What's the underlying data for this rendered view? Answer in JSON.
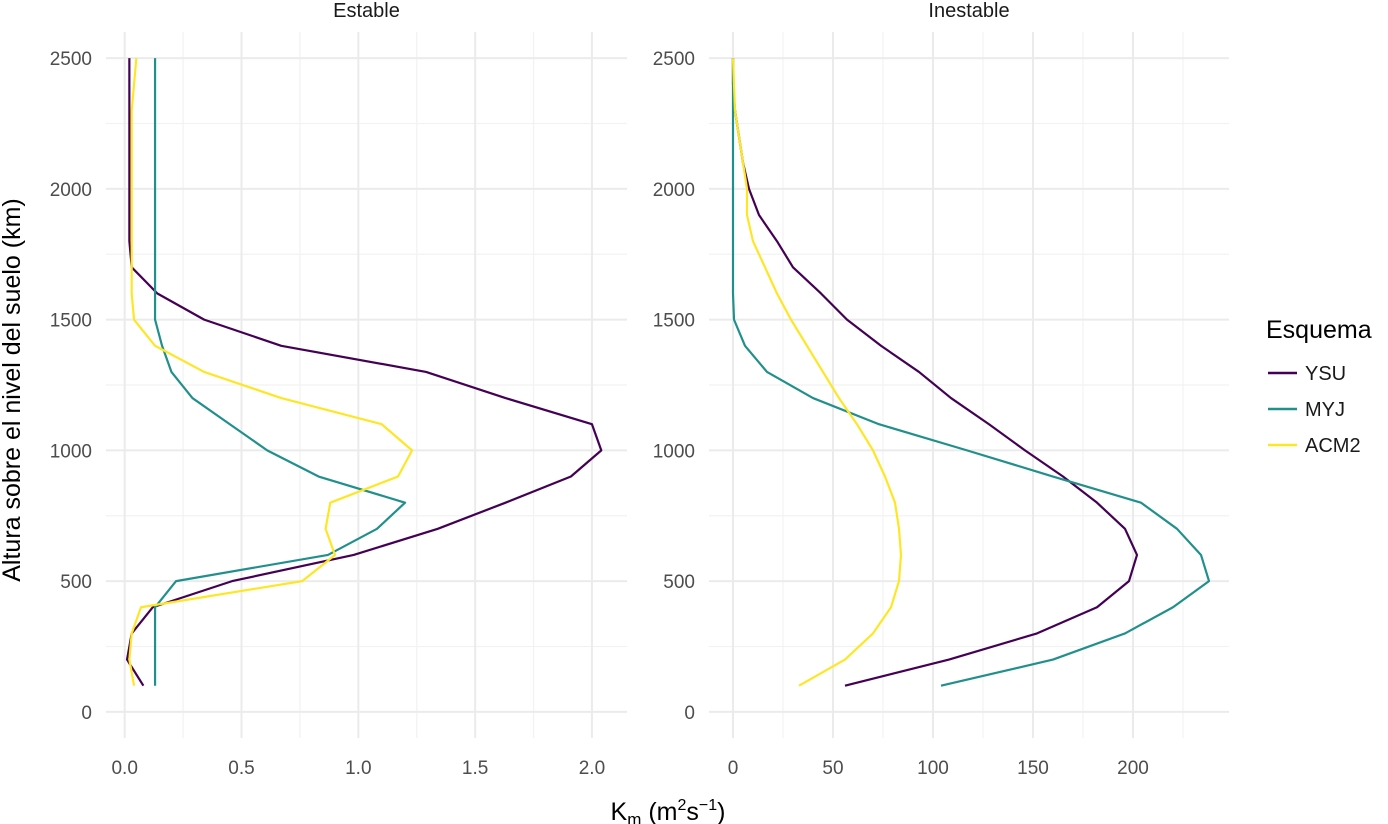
{
  "chart_data": {
    "type": "line",
    "xlabel": {
      "main": "K",
      "sub": "m",
      "unit_open": " (m",
      "sup1": "2",
      "unit_mid": "s",
      "sup2": "−1",
      "unit_close": ")"
    },
    "ylabel": "Altura sobre el nivel del suelo (km)",
    "ylim": [
      -100,
      2600
    ],
    "yticks": [
      0,
      500,
      1000,
      1500,
      2000,
      2500
    ],
    "grid": true,
    "legend": {
      "title": "Esquema",
      "position": "right",
      "entries": [
        {
          "name": "YSU",
          "color": "#440154"
        },
        {
          "name": "MYJ",
          "color": "#21908C"
        },
        {
          "name": "ACM2",
          "color": "#FDE725"
        }
      ]
    },
    "panels": [
      {
        "title": "Estable",
        "xlim": [
          -0.08,
          2.15
        ],
        "xticks": [
          0.0,
          0.5,
          1.0,
          1.5,
          2.0
        ],
        "xtick_labels": [
          "0.0",
          "0.5",
          "1.0",
          "1.5",
          "2.0"
        ],
        "series": [
          {
            "name": "YSU",
            "color": "#440154",
            "points": [
              [
                0.08,
                100
              ],
              [
                0.01,
                200
              ],
              [
                0.03,
                300
              ],
              [
                0.12,
                400
              ],
              [
                0.46,
                500
              ],
              [
                0.98,
                600
              ],
              [
                1.34,
                700
              ],
              [
                1.63,
                800
              ],
              [
                1.91,
                900
              ],
              [
                2.04,
                1000
              ],
              [
                2.0,
                1100
              ],
              [
                1.63,
                1200
              ],
              [
                1.29,
                1300
              ],
              [
                0.67,
                1400
              ],
              [
                0.34,
                1500
              ],
              [
                0.14,
                1600
              ],
              [
                0.03,
                1700
              ],
              [
                0.02,
                1800
              ],
              [
                0.02,
                1900
              ],
              [
                0.02,
                2000
              ],
              [
                0.02,
                2100
              ],
              [
                0.02,
                2200
              ],
              [
                0.02,
                2300
              ],
              [
                0.02,
                2400
              ],
              [
                0.02,
                2500
              ]
            ]
          },
          {
            "name": "MYJ",
            "color": "#21908C",
            "points": [
              [
                0.13,
                100
              ],
              [
                0.13,
                200
              ],
              [
                0.13,
                300
              ],
              [
                0.13,
                400
              ],
              [
                0.22,
                500
              ],
              [
                0.87,
                600
              ],
              [
                1.08,
                700
              ],
              [
                1.2,
                800
              ],
              [
                0.83,
                900
              ],
              [
                0.61,
                1000
              ],
              [
                0.45,
                1100
              ],
              [
                0.29,
                1200
              ],
              [
                0.2,
                1300
              ],
              [
                0.16,
                1400
              ],
              [
                0.13,
                1500
              ],
              [
                0.13,
                1600
              ],
              [
                0.13,
                1700
              ],
              [
                0.13,
                1800
              ],
              [
                0.13,
                1900
              ],
              [
                0.13,
                2000
              ],
              [
                0.13,
                2100
              ],
              [
                0.13,
                2200
              ],
              [
                0.13,
                2300
              ],
              [
                0.13,
                2400
              ],
              [
                0.13,
                2500
              ]
            ]
          },
          {
            "name": "ACM2",
            "color": "#FDE725",
            "points": [
              [
                0.04,
                100
              ],
              [
                0.02,
                200
              ],
              [
                0.03,
                300
              ],
              [
                0.07,
                400
              ],
              [
                0.76,
                500
              ],
              [
                0.9,
                600
              ],
              [
                0.86,
                700
              ],
              [
                0.88,
                800
              ],
              [
                1.17,
                900
              ],
              [
                1.23,
                1000
              ],
              [
                1.1,
                1100
              ],
              [
                0.67,
                1200
              ],
              [
                0.34,
                1300
              ],
              [
                0.13,
                1400
              ],
              [
                0.04,
                1500
              ],
              [
                0.03,
                1600
              ],
              [
                0.03,
                1700
              ],
              [
                0.03,
                1800
              ],
              [
                0.03,
                1900
              ],
              [
                0.03,
                2000
              ],
              [
                0.03,
                2100
              ],
              [
                0.03,
                2200
              ],
              [
                0.03,
                2300
              ],
              [
                0.04,
                2400
              ],
              [
                0.05,
                2500
              ]
            ]
          }
        ]
      },
      {
        "title": "Inestable",
        "xlim": [
          -12,
          248
        ],
        "xticks": [
          0,
          50,
          100,
          150,
          200
        ],
        "xtick_labels": [
          "0",
          "50",
          "100",
          "150",
          "200"
        ],
        "series": [
          {
            "name": "YSU",
            "color": "#440154",
            "points": [
              [
                56,
                100
              ],
              [
                108,
                200
              ],
              [
                152,
                300
              ],
              [
                182,
                400
              ],
              [
                198,
                500
              ],
              [
                202,
                600
              ],
              [
                196,
                700
              ],
              [
                182,
                800
              ],
              [
                165,
                900
              ],
              [
                146,
                1000
              ],
              [
                128,
                1100
              ],
              [
                109,
                1200
              ],
              [
                93,
                1300
              ],
              [
                74,
                1400
              ],
              [
                57,
                1500
              ],
              [
                44,
                1600
              ],
              [
                30,
                1700
              ],
              [
                22,
                1800
              ],
              [
                13,
                1900
              ],
              [
                8,
                2000
              ],
              [
                5,
                2100
              ],
              [
                3,
                2200
              ],
              [
                1,
                2300
              ],
              [
                0,
                2400
              ],
              [
                0,
                2500
              ]
            ]
          },
          {
            "name": "MYJ",
            "color": "#21908C",
            "points": [
              [
                104,
                100
              ],
              [
                160,
                200
              ],
              [
                196,
                300
              ],
              [
                220,
                400
              ],
              [
                238,
                500
              ],
              [
                234,
                600
              ],
              [
                222,
                700
              ],
              [
                204,
                800
              ],
              [
                160,
                900
              ],
              [
                117,
                1000
              ],
              [
                73,
                1100
              ],
              [
                40,
                1200
              ],
              [
                17,
                1300
              ],
              [
                6,
                1400
              ],
              [
                0.5,
                1500
              ],
              [
                0,
                1600
              ],
              [
                0,
                1700
              ],
              [
                0,
                1800
              ],
              [
                0,
                1900
              ],
              [
                0,
                2000
              ],
              [
                0,
                2100
              ],
              [
                0,
                2200
              ],
              [
                0,
                2300
              ],
              [
                0,
                2400
              ],
              [
                0,
                2500
              ]
            ]
          },
          {
            "name": "ACM2",
            "color": "#FDE725",
            "points": [
              [
                33,
                100
              ],
              [
                56,
                200
              ],
              [
                70,
                300
              ],
              [
                79,
                400
              ],
              [
                83,
                500
              ],
              [
                84,
                600
              ],
              [
                83,
                700
              ],
              [
                81,
                800
              ],
              [
                76,
                900
              ],
              [
                70,
                1000
              ],
              [
                62,
                1100
              ],
              [
                53,
                1200
              ],
              [
                45,
                1300
              ],
              [
                37,
                1400
              ],
              [
                29,
                1500
              ],
              [
                22,
                1600
              ],
              [
                16,
                1700
              ],
              [
                10,
                1800
              ],
              [
                7,
                1900
              ],
              [
                7,
                2000
              ],
              [
                5,
                2100
              ],
              [
                3,
                2200
              ],
              [
                1,
                2300
              ],
              [
                0.5,
                2400
              ],
              [
                0,
                2500
              ]
            ]
          }
        ]
      }
    ]
  }
}
